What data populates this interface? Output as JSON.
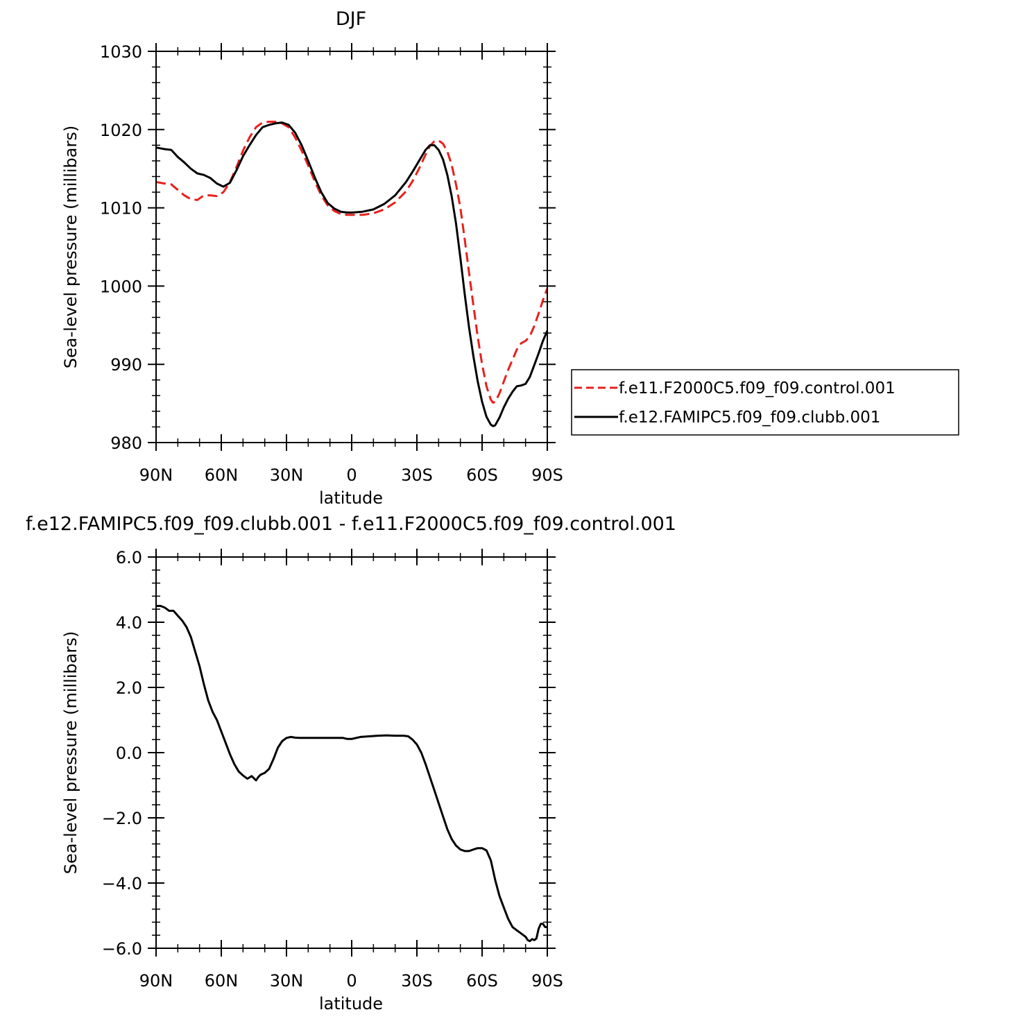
{
  "chart_data": [
    {
      "type": "line",
      "title": "DJF",
      "xlabel": "latitude",
      "ylabel": "Sea-level pressure (millibars)",
      "xlim": [
        90,
        -90
      ],
      "ylim": [
        980,
        1030
      ],
      "x_ticks": [
        90,
        60,
        30,
        0,
        -30,
        -60,
        -90
      ],
      "x_tick_labels": [
        "90N",
        "60N",
        "30N",
        "0",
        "30S",
        "60S",
        "90S"
      ],
      "y_ticks": [
        980,
        990,
        1000,
        1010,
        1020,
        1030
      ],
      "y_tick_labels": [
        "980",
        "990",
        "1000",
        "1010",
        "1020",
        "1030"
      ],
      "legend_position": "right",
      "series": [
        {
          "name": "f.e11.F2000C5.f09_f09.control.001",
          "color": "#e8201c",
          "dash": "dashed",
          "x": [
            90,
            86,
            83,
            80,
            77,
            74,
            71,
            68,
            65,
            62,
            59,
            56,
            53,
            50,
            47,
            44,
            41,
            38,
            35,
            32,
            29,
            26,
            23,
            20,
            17,
            14,
            11,
            8,
            5,
            2,
            0,
            -5,
            -10,
            -15,
            -20,
            -25,
            -28,
            -31,
            -34,
            -36,
            -38,
            -40,
            -42,
            -44,
            -46,
            -48,
            -50,
            -52,
            -54,
            -56,
            -58,
            -60,
            -62,
            -64,
            -65,
            -66,
            -68,
            -70,
            -72,
            -74,
            -76,
            -78,
            -80,
            -82,
            -84,
            -86,
            -88,
            -90
          ],
          "values": [
            1013.3,
            1013.1,
            1013.0,
            1012.3,
            1011.6,
            1011.1,
            1011.0,
            1011.6,
            1011.6,
            1011.5,
            1012.0,
            1013.3,
            1015.2,
            1017.3,
            1019.0,
            1020.3,
            1020.9,
            1021.0,
            1021.0,
            1020.8,
            1020.3,
            1019.0,
            1017.3,
            1015.4,
            1013.4,
            1011.6,
            1010.3,
            1009.6,
            1009.2,
            1009.1,
            1009.1,
            1009.1,
            1009.3,
            1009.8,
            1010.7,
            1012.1,
            1013.4,
            1015.0,
            1016.8,
            1017.9,
            1018.5,
            1018.6,
            1018.2,
            1017.2,
            1015.5,
            1013.0,
            1010.0,
            1006.0,
            1001.7,
            997.5,
            993.5,
            990.0,
            987.2,
            985.5,
            985.1,
            985.2,
            986.3,
            987.8,
            989.3,
            990.6,
            991.9,
            992.7,
            993.0,
            993.6,
            994.9,
            996.5,
            998.2,
            999.7
          ]
        },
        {
          "name": "f.e12.FAMIPC5.f09_f09.clubb.001",
          "color": "#000000",
          "dash": "solid",
          "x": [
            90,
            86,
            83,
            80,
            77,
            74,
            71,
            68,
            65,
            62,
            59,
            56,
            53,
            50,
            47,
            44,
            41,
            38,
            35,
            32,
            29,
            26,
            23,
            20,
            17,
            14,
            11,
            8,
            5,
            2,
            0,
            -5,
            -10,
            -15,
            -20,
            -25,
            -28,
            -31,
            -34,
            -36,
            -38,
            -40,
            -42,
            -44,
            -46,
            -48,
            -50,
            -52,
            -54,
            -56,
            -58,
            -60,
            -62,
            -64,
            -65,
            -66,
            -68,
            -70,
            -72,
            -74,
            -76,
            -78,
            -80,
            -82,
            -84,
            -86,
            -88,
            -90
          ],
          "values": [
            1017.7,
            1017.5,
            1017.4,
            1016.5,
            1015.8,
            1015.0,
            1014.4,
            1014.2,
            1013.8,
            1013.1,
            1012.7,
            1013.2,
            1014.8,
            1016.6,
            1018.0,
            1019.3,
            1020.3,
            1020.6,
            1020.8,
            1020.9,
            1020.6,
            1019.6,
            1018.0,
            1016.0,
            1013.9,
            1012.0,
            1010.6,
            1009.9,
            1009.5,
            1009.4,
            1009.4,
            1009.5,
            1009.8,
            1010.5,
            1011.6,
            1013.3,
            1014.6,
            1016.0,
            1017.4,
            1018.0,
            1018.0,
            1017.4,
            1016.2,
            1014.2,
            1011.5,
            1008.0,
            1003.6,
            999.0,
            994.7,
            991.0,
            987.8,
            985.2,
            983.3,
            982.3,
            982.1,
            982.2,
            983.2,
            984.5,
            985.6,
            986.5,
            987.2,
            987.3,
            987.5,
            988.4,
            989.9,
            991.4,
            993.0,
            994.3
          ]
        }
      ]
    },
    {
      "type": "line",
      "title": "f.e12.FAMIPC5.f09_f09.clubb.001 - f.e11.F2000C5.f09_f09.control.001",
      "xlabel": "latitude",
      "ylabel": "Sea-level pressure (millibars)",
      "xlim": [
        90,
        -90
      ],
      "ylim": [
        -6,
        6
      ],
      "x_ticks": [
        90,
        60,
        30,
        0,
        -30,
        -60,
        -90
      ],
      "x_tick_labels": [
        "90N",
        "60N",
        "30N",
        "0",
        "30S",
        "60S",
        "90S"
      ],
      "y_ticks": [
        -6,
        -4,
        -2,
        0,
        2,
        4,
        6
      ],
      "y_tick_labels": [
        "−6.0",
        "−4.0",
        "−2.0",
        "0.0",
        "2.0",
        "4.0",
        "6.0"
      ],
      "series": [
        {
          "name": "",
          "color": "#000000",
          "dash": "solid",
          "x": [
            90,
            88,
            86,
            84,
            82,
            80,
            78,
            76,
            74,
            72,
            70,
            68,
            66,
            64,
            62,
            60,
            58,
            56,
            54,
            52,
            50,
            48,
            46,
            44,
            43,
            42,
            40,
            38,
            36,
            34,
            32,
            30,
            28,
            26,
            24,
            22,
            20,
            16,
            12,
            8,
            4,
            2,
            0,
            -4,
            -8,
            -12,
            -16,
            -20,
            -24,
            -26,
            -28,
            -30,
            -32,
            -34,
            -36,
            -38,
            -40,
            -42,
            -44,
            -46,
            -48,
            -50,
            -52,
            -54,
            -56,
            -58,
            -60,
            -62,
            -64,
            -65,
            -66,
            -67,
            -68,
            -70,
            -72,
            -74,
            -76,
            -78,
            -80,
            -81,
            -82,
            -83,
            -84,
            -85,
            -86,
            -87,
            -88,
            -89,
            -90
          ],
          "values": [
            4.5,
            4.5,
            4.45,
            4.35,
            4.35,
            4.2,
            4.05,
            3.85,
            3.55,
            3.1,
            2.65,
            2.1,
            1.6,
            1.25,
            1.0,
            0.65,
            0.3,
            -0.05,
            -0.35,
            -0.58,
            -0.7,
            -0.8,
            -0.72,
            -0.85,
            -0.75,
            -0.68,
            -0.62,
            -0.5,
            -0.2,
            0.15,
            0.35,
            0.45,
            0.48,
            0.46,
            0.45,
            0.45,
            0.45,
            0.45,
            0.45,
            0.45,
            0.45,
            0.42,
            0.42,
            0.48,
            0.5,
            0.52,
            0.53,
            0.52,
            0.52,
            0.5,
            0.4,
            0.25,
            0.0,
            -0.35,
            -0.75,
            -1.15,
            -1.55,
            -1.95,
            -2.35,
            -2.65,
            -2.85,
            -2.97,
            -3.02,
            -3.02,
            -2.97,
            -2.93,
            -2.93,
            -3.0,
            -3.3,
            -3.6,
            -3.9,
            -4.15,
            -4.4,
            -4.75,
            -5.1,
            -5.35,
            -5.45,
            -5.55,
            -5.65,
            -5.75,
            -5.78,
            -5.72,
            -5.75,
            -5.7,
            -5.4,
            -5.25,
            -5.25,
            -5.35,
            -5.35
          ]
        }
      ]
    }
  ]
}
